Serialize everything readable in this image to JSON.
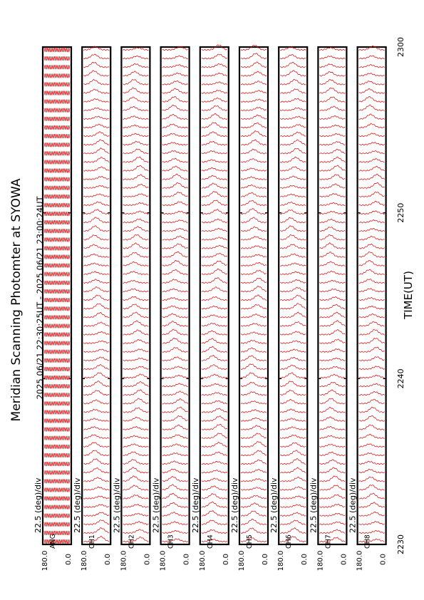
{
  "page": {
    "title": "Meridian Scanning Photomter at SYOWA",
    "time_range": "2025 06/21 22:30:25UT - 2025 06/21 23:00:24UT",
    "xlabel": "TIME(UT)"
  },
  "chart_data": {
    "type": "line",
    "orientation": "rotated-90",
    "x_range": [
      2230,
      2300
    ],
    "x_ticks": [
      "2230",
      "2240",
      "2250",
      "2300"
    ],
    "y_range": [
      0.0,
      180.0
    ],
    "y_tick_top": "180.0",
    "y_tick_bottom": "0.0",
    "scale_label": "22.5 (deg)/div",
    "grid": false,
    "panels": [
      {
        "channel": "ANG",
        "scale": "22.5 (deg)/div"
      },
      {
        "channel": "CH1",
        "scale": "22.5 (deg)/div"
      },
      {
        "channel": "CH2",
        "scale": "22.5 (deg)/div"
      },
      {
        "channel": "CH3",
        "scale": "22.5 (deg)/div"
      },
      {
        "channel": "CH4",
        "scale": "22.5 (deg)/div"
      },
      {
        "channel": "CH5",
        "scale": "22.5 (deg)/div"
      },
      {
        "channel": "CH6",
        "scale": "22.5 (deg)/div"
      },
      {
        "channel": "CH7",
        "scale": "22.5 (deg)/div"
      },
      {
        "channel": "CH8",
        "scale": "22.5 (deg)/div"
      }
    ],
    "trace_color": "#e00000",
    "frame_color": "#000000"
  }
}
